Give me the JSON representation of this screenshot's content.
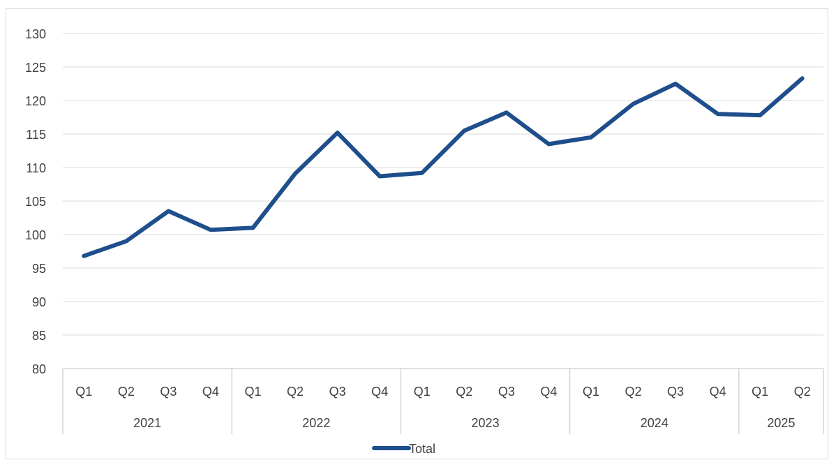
{
  "chart_data": {
    "type": "line",
    "title": "",
    "xlabel": "",
    "ylabel": "",
    "ylim": [
      80,
      130
    ],
    "y_ticks": [
      "80",
      "85",
      "90",
      "95",
      "100",
      "105",
      "110",
      "115",
      "120",
      "125",
      "130"
    ],
    "categories": [
      "Q1",
      "Q2",
      "Q3",
      "Q4",
      "Q1",
      "Q2",
      "Q3",
      "Q4",
      "Q1",
      "Q2",
      "Q3",
      "Q4",
      "Q1",
      "Q2",
      "Q3",
      "Q4",
      "Q1",
      "Q2"
    ],
    "groups": [
      {
        "label": "2021",
        "count": 4
      },
      {
        "label": "2022",
        "count": 4
      },
      {
        "label": "2023",
        "count": 4
      },
      {
        "label": "2024",
        "count": 4
      },
      {
        "label": "2025",
        "count": 2
      }
    ],
    "series": [
      {
        "name": "Total",
        "color": "#1f4e8c",
        "values": [
          96.8,
          99.0,
          103.5,
          100.7,
          101.0,
          109.1,
          115.2,
          108.7,
          109.2,
          115.5,
          118.2,
          113.5,
          114.5,
          119.5,
          122.5,
          118.0,
          117.8,
          123.3
        ]
      }
    ],
    "grid": true,
    "legend": "bottom"
  }
}
